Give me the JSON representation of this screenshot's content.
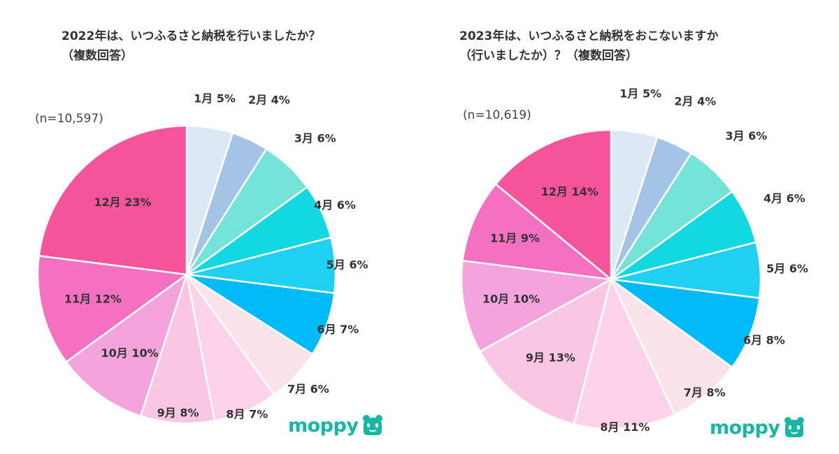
{
  "colors": {
    "months": {
      "1": "#dce9f5",
      "2": "#a4c4e6",
      "3": "#74e3d8",
      "4": "#12d8e0",
      "5": "#20d0f0",
      "6": "#00bbf5",
      "7": "#fae4ec",
      "8": "#fcd3e8",
      "9": "#f9c6e4",
      "10": "#f5a3dd",
      "11": "#f570c1",
      "12": "#f7559b"
    },
    "divider": "#ffffff",
    "logo": "#17b8a3"
  },
  "charts": {
    "left": {
      "title_lines": [
        "2022年は、いつふるさと納税を行いましたか？",
        "（複数回答）"
      ],
      "sample_size": "(n=10,597)",
      "logo_text": "moppy",
      "logo_icon": "moppy-mascot-icon"
    },
    "right": {
      "title_lines": [
        "2023年は、いつふるさと納税をおこないますか",
        "（行いましたか）？（複数回答）"
      ],
      "sample_size": "(n=10,619)",
      "logo_text": "moppy",
      "logo_icon": "moppy-mascot-icon"
    }
  },
  "chart_data": [
    {
      "type": "pie",
      "title": "2022年は、いつふるさと納税を行いましたか？（複数回答）",
      "annotation": "(n=10,597)",
      "unit": "%",
      "slices": [
        {
          "label": "1月",
          "value": 5,
          "color_key": "1"
        },
        {
          "label": "2月",
          "value": 4,
          "color_key": "2"
        },
        {
          "label": "3月",
          "value": 6,
          "color_key": "3"
        },
        {
          "label": "4月",
          "value": 6,
          "color_key": "4"
        },
        {
          "label": "5月",
          "value": 6,
          "color_key": "5"
        },
        {
          "label": "6月",
          "value": 7,
          "color_key": "6"
        },
        {
          "label": "7月",
          "value": 6,
          "color_key": "7"
        },
        {
          "label": "8月",
          "value": 7,
          "color_key": "8"
        },
        {
          "label": "9月",
          "value": 8,
          "color_key": "9"
        },
        {
          "label": "10月",
          "value": 10,
          "color_key": "10"
        },
        {
          "label": "11月",
          "value": 12,
          "color_key": "11"
        },
        {
          "label": "12月",
          "value": 23,
          "color_key": "12"
        }
      ]
    },
    {
      "type": "pie",
      "title": "2023年は、いつふるさと納税をおこないますか（行いましたか）？（複数回答）",
      "annotation": "(n=10,619)",
      "unit": "%",
      "slices": [
        {
          "label": "1月",
          "value": 5,
          "color_key": "1"
        },
        {
          "label": "2月",
          "value": 4,
          "color_key": "2"
        },
        {
          "label": "3月",
          "value": 6,
          "color_key": "3"
        },
        {
          "label": "4月",
          "value": 6,
          "color_key": "4"
        },
        {
          "label": "5月",
          "value": 6,
          "color_key": "5"
        },
        {
          "label": "6月",
          "value": 8,
          "color_key": "6"
        },
        {
          "label": "7月",
          "value": 8,
          "color_key": "7"
        },
        {
          "label": "8月",
          "value": 11,
          "color_key": "8"
        },
        {
          "label": "9月",
          "value": 13,
          "color_key": "9"
        },
        {
          "label": "10月",
          "value": 10,
          "color_key": "10"
        },
        {
          "label": "11月",
          "value": 9,
          "color_key": "11"
        },
        {
          "label": "12月",
          "value": 14,
          "color_key": "12"
        }
      ]
    }
  ]
}
